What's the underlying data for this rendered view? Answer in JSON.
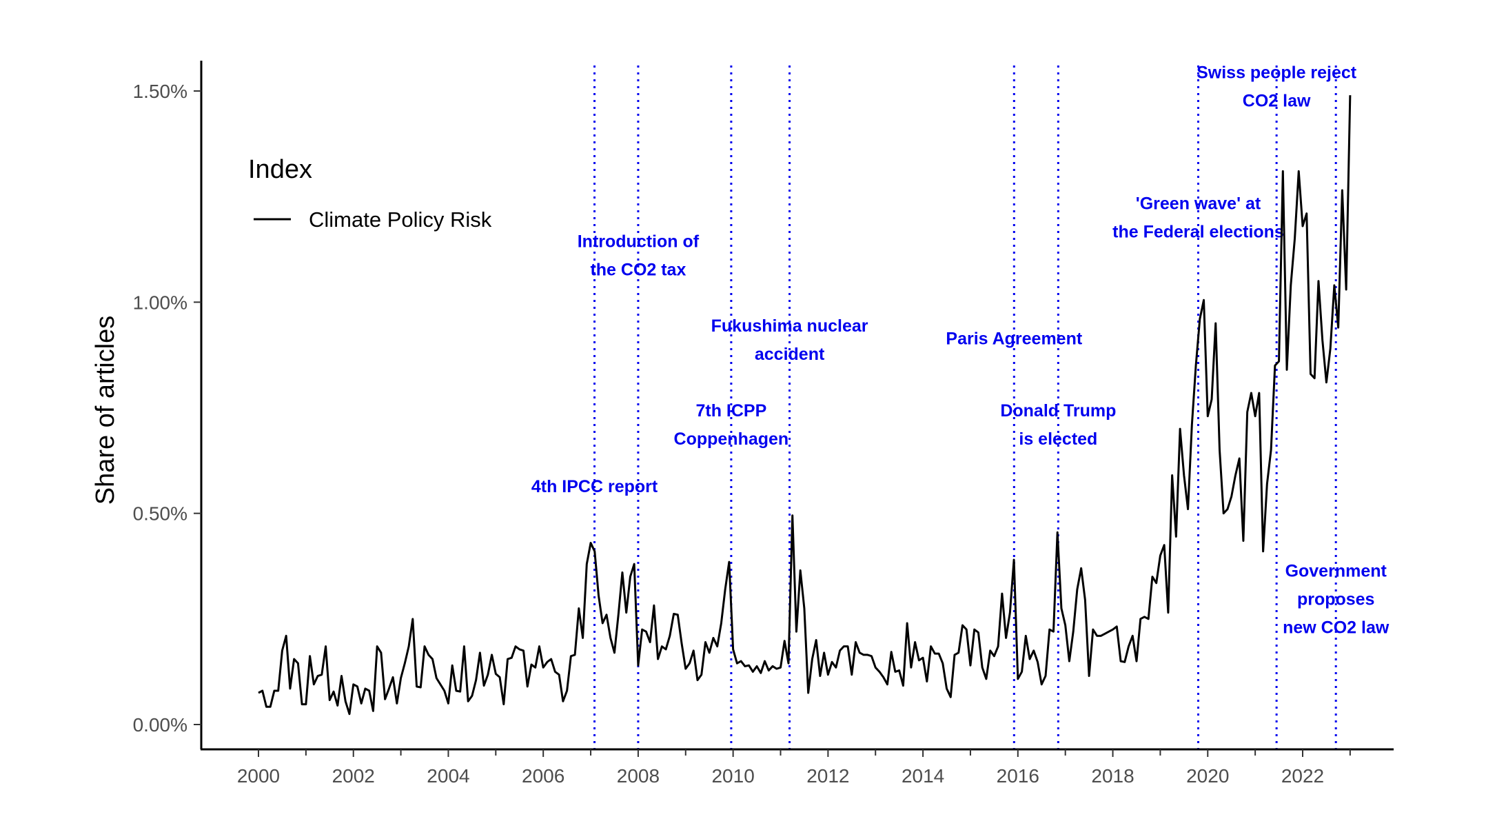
{
  "chart_data": {
    "type": "line",
    "title": "",
    "xlabel": "",
    "ylabel": "Share of articles",
    "xlim": [
      1999.4,
      2023.9
    ],
    "ylim": [
      -0.0005,
      0.01575
    ],
    "x_ticks": [
      2000,
      2002,
      2004,
      2006,
      2008,
      2010,
      2012,
      2014,
      2016,
      2018,
      2020,
      2022
    ],
    "x_tick_labels": [
      "2000",
      "2002",
      "2004",
      "2006",
      "2008",
      "2010",
      "2012",
      "2014",
      "2016",
      "2018",
      "2020",
      "2022"
    ],
    "y_ticks": [
      0.0,
      0.005,
      0.01,
      0.015
    ],
    "y_tick_labels": [
      "0.00%",
      "0.50%",
      "1.00%",
      "1.50%"
    ],
    "grid": false,
    "legend": {
      "title": "Index",
      "position": "left",
      "entries": [
        "Climate Policy Risk"
      ]
    },
    "colors": {
      "line": "#000000",
      "event": "#0000ee",
      "axis": "#000000",
      "tick_text": "#4d4d4d"
    },
    "series": [
      {
        "name": "Climate Policy Risk",
        "monthly_start": "2000-01",
        "values": [
          0.00075,
          0.0008,
          0.00042,
          0.00042,
          0.0008,
          0.0008,
          0.00175,
          0.0021,
          0.00085,
          0.00155,
          0.00145,
          0.00048,
          0.00048,
          0.00162,
          0.00095,
          0.00115,
          0.00118,
          0.00185,
          0.00058,
          0.00078,
          0.00045,
          0.00115,
          0.00055,
          0.00025,
          0.00095,
          0.0009,
          0.0005,
          0.00085,
          0.0008,
          0.00032,
          0.00185,
          0.0017,
          0.0006,
          0.00085,
          0.00112,
          0.0005,
          0.0011,
          0.00145,
          0.00185,
          0.0025,
          0.0009,
          0.00088,
          0.00185,
          0.00165,
          0.00155,
          0.0011,
          0.00095,
          0.0008,
          0.0005,
          0.0014,
          0.0008,
          0.00078,
          0.00185,
          0.00055,
          0.00068,
          0.00105,
          0.0017,
          0.00092,
          0.00118,
          0.00165,
          0.0012,
          0.00112,
          0.00048,
          0.00155,
          0.00158,
          0.00185,
          0.00178,
          0.00175,
          0.0009,
          0.00142,
          0.00135,
          0.00185,
          0.00135,
          0.00148,
          0.00155,
          0.00125,
          0.00118,
          0.00055,
          0.0008,
          0.00162,
          0.00165,
          0.00275,
          0.00205,
          0.0038,
          0.0043,
          0.0041,
          0.00305,
          0.0024,
          0.0026,
          0.00205,
          0.0017,
          0.0026,
          0.0036,
          0.00265,
          0.0035,
          0.0038,
          0.0014,
          0.00225,
          0.0022,
          0.00195,
          0.00282,
          0.00155,
          0.00185,
          0.00178,
          0.0021,
          0.00262,
          0.0026,
          0.00192,
          0.00132,
          0.00145,
          0.00175,
          0.00105,
          0.00118,
          0.00195,
          0.0017,
          0.00205,
          0.00185,
          0.0024,
          0.0032,
          0.00385,
          0.00178,
          0.00145,
          0.0015,
          0.00138,
          0.0014,
          0.00125,
          0.00138,
          0.00122,
          0.0015,
          0.00128,
          0.00138,
          0.00132,
          0.00135,
          0.00198,
          0.00145,
          0.00495,
          0.0022,
          0.00365,
          0.00275,
          0.00075,
          0.00155,
          0.002,
          0.00115,
          0.0017,
          0.00118,
          0.00148,
          0.00135,
          0.00175,
          0.00185,
          0.00185,
          0.00118,
          0.00195,
          0.0017,
          0.00165,
          0.00165,
          0.00162,
          0.00135,
          0.00125,
          0.00112,
          0.00095,
          0.00172,
          0.00125,
          0.00128,
          0.00092,
          0.0024,
          0.00135,
          0.00195,
          0.00152,
          0.00158,
          0.00102,
          0.00185,
          0.00168,
          0.00168,
          0.00145,
          0.00085,
          0.00065,
          0.00165,
          0.0017,
          0.00235,
          0.00225,
          0.0014,
          0.00225,
          0.00218,
          0.00135,
          0.00108,
          0.00175,
          0.00162,
          0.00185,
          0.0031,
          0.00205,
          0.00265,
          0.0039,
          0.00108,
          0.00125,
          0.0021,
          0.00155,
          0.00175,
          0.00148,
          0.00095,
          0.00115,
          0.00225,
          0.0022,
          0.00455,
          0.00275,
          0.00235,
          0.0015,
          0.0022,
          0.0032,
          0.0037,
          0.00295,
          0.00115,
          0.00225,
          0.0021,
          0.0021,
          0.00215,
          0.0022,
          0.00225,
          0.00232,
          0.0015,
          0.00148,
          0.00185,
          0.0021,
          0.0015,
          0.0025,
          0.00255,
          0.0025,
          0.0035,
          0.00335,
          0.004,
          0.00425,
          0.00265,
          0.0059,
          0.00445,
          0.007,
          0.0059,
          0.0051,
          0.0071,
          0.0085,
          0.0096,
          0.01005,
          0.0073,
          0.0077,
          0.0095,
          0.0065,
          0.005,
          0.0051,
          0.0054,
          0.0059,
          0.0063,
          0.00435,
          0.0074,
          0.00785,
          0.0073,
          0.00785,
          0.0041,
          0.0057,
          0.0065,
          0.0085,
          0.0086,
          0.0131,
          0.0084,
          0.0104,
          0.0115,
          0.0131,
          0.0118,
          0.0121,
          0.0083,
          0.0082,
          0.0105,
          0.0091,
          0.0081,
          0.0089,
          0.0104,
          0.0094,
          0.01265,
          0.0103,
          0.0149
        ]
      }
    ],
    "events": [
      {
        "x": 2007.08,
        "label": [
          "4th IPCC report"
        ],
        "label_y": 0.0055
      },
      {
        "x": 2008.0,
        "label": [
          "Introduction of",
          "the CO2 tax"
        ],
        "label_y": 0.0113
      },
      {
        "x": 2009.96,
        "label": [
          "7th ICPP",
          "Coppenhagen"
        ],
        "label_y": 0.0073
      },
      {
        "x": 2011.19,
        "label": [
          "Fukushima nuclear",
          "accident"
        ],
        "label_y": 0.0093
      },
      {
        "x": 2015.92,
        "label": [
          "Paris Agreement"
        ],
        "label_y": 0.009
      },
      {
        "x": 2016.85,
        "label": [
          "Donald Trump",
          "is elected"
        ],
        "label_y": 0.0073
      },
      {
        "x": 2019.8,
        "label": [
          "'Green wave' at",
          "the Federal elections"
        ],
        "label_y": 0.0122
      },
      {
        "x": 2021.45,
        "label": [
          "Swiss people reject",
          "CO2 law"
        ],
        "label_y": 0.0153
      },
      {
        "x": 2022.7,
        "label": [
          "Government",
          "proposes",
          "new CO2 law"
        ],
        "label_y": 0.0035
      }
    ]
  }
}
